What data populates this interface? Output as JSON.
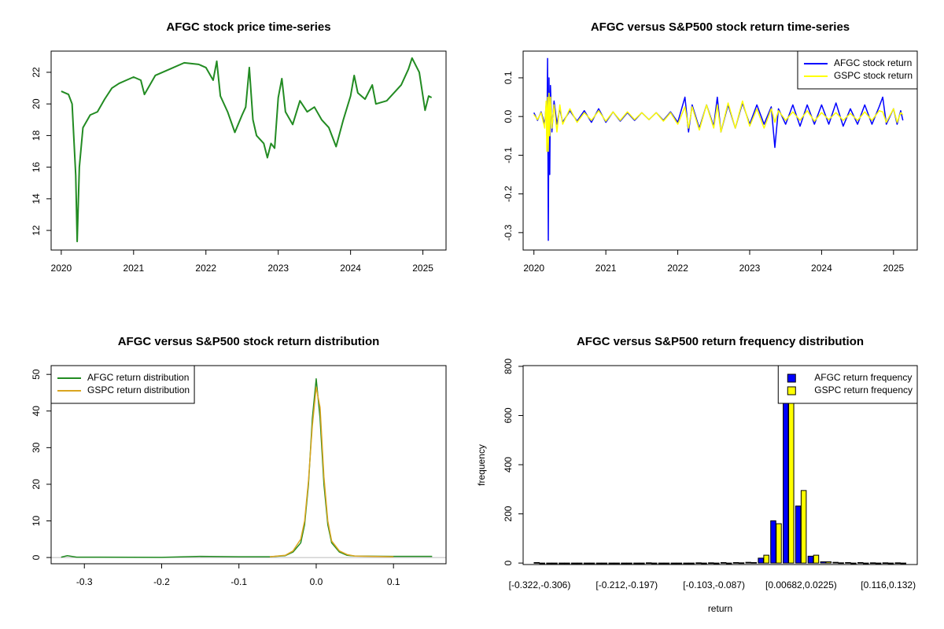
{
  "chart_data": [
    {
      "type": "line",
      "title": "AFGC stock price time-series",
      "color": "#228b22",
      "x": [
        2020.0,
        2020.1,
        2020.15,
        2020.2,
        2020.22,
        2020.25,
        2020.3,
        2020.4,
        2020.5,
        2020.6,
        2020.7,
        2020.8,
        2020.9,
        2021.0,
        2021.1,
        2021.15,
        2021.3,
        2021.5,
        2021.7,
        2021.9,
        2022.0,
        2022.1,
        2022.15,
        2022.2,
        2022.3,
        2022.4,
        2022.5,
        2022.55,
        2022.6,
        2022.65,
        2022.7,
        2022.8,
        2022.85,
        2022.9,
        2022.95,
        2023.0,
        2023.05,
        2023.1,
        2023.2,
        2023.3,
        2023.4,
        2023.5,
        2023.6,
        2023.7,
        2023.8,
        2023.9,
        2024.0,
        2024.05,
        2024.1,
        2024.2,
        2024.3,
        2024.35,
        2024.5,
        2024.7,
        2024.8,
        2024.85,
        2024.95,
        2025.0,
        2025.03,
        2025.08,
        2025.12
      ],
      "values": [
        20.8,
        20.6,
        20.0,
        15.5,
        11.3,
        16.0,
        18.5,
        19.3,
        19.5,
        20.3,
        21.0,
        21.3,
        21.5,
        21.7,
        21.5,
        20.6,
        21.8,
        22.2,
        22.6,
        22.5,
        22.3,
        21.5,
        22.7,
        20.5,
        19.5,
        18.2,
        19.3,
        19.8,
        22.3,
        19.0,
        18.0,
        17.5,
        16.6,
        17.5,
        17.2,
        20.4,
        21.6,
        19.5,
        18.7,
        20.2,
        19.5,
        19.8,
        19.0,
        18.5,
        17.3,
        19.0,
        20.5,
        21.8,
        20.7,
        20.3,
        21.2,
        20.0,
        20.2,
        21.2,
        22.2,
        22.9,
        22.0,
        20.5,
        19.6,
        20.5,
        20.4
      ],
      "xlim": [
        2019.86,
        2025.32
      ],
      "xticks": [
        2020,
        2021,
        2022,
        2023,
        2024,
        2025
      ],
      "ylim": [
        10.76,
        23.34
      ],
      "yticks": [
        12,
        14,
        16,
        18,
        20,
        22
      ]
    },
    {
      "type": "line",
      "title": "AFGC versus S&P500 stock return time-series",
      "legend": "topright",
      "x": [
        2020.0,
        2020.05,
        2020.1,
        2020.15,
        2020.17,
        2020.18,
        2020.19,
        2020.2,
        2020.21,
        2020.22,
        2020.23,
        2020.25,
        2020.28,
        2020.32,
        2020.36,
        2020.4,
        2020.5,
        2020.6,
        2020.7,
        2020.8,
        2020.9,
        2021.0,
        2021.1,
        2021.2,
        2021.3,
        2021.4,
        2021.5,
        2021.6,
        2021.7,
        2021.8,
        2021.9,
        2022.0,
        2022.1,
        2022.15,
        2022.2,
        2022.3,
        2022.4,
        2022.5,
        2022.55,
        2022.6,
        2022.7,
        2022.8,
        2022.9,
        2023.0,
        2023.1,
        2023.2,
        2023.3,
        2023.35,
        2023.4,
        2023.5,
        2023.6,
        2023.7,
        2023.8,
        2023.9,
        2024.0,
        2024.1,
        2024.2,
        2024.3,
        2024.4,
        2024.5,
        2024.6,
        2024.7,
        2024.8,
        2024.85,
        2024.9,
        2025.0,
        2025.05,
        2025.1,
        2025.13
      ],
      "series": [
        {
          "name": "AFGC stock return",
          "color": "#0000ff",
          "values": [
            0.01,
            -0.01,
            0.012,
            -0.02,
            0.03,
            -0.05,
            0.15,
            -0.32,
            0.1,
            -0.15,
            0.08,
            -0.04,
            0.04,
            -0.02,
            0.02,
            -0.015,
            0.015,
            -0.012,
            0.015,
            -0.015,
            0.02,
            -0.015,
            0.012,
            -0.012,
            0.01,
            -0.01,
            0.01,
            -0.008,
            0.01,
            -0.01,
            0.012,
            -0.015,
            0.05,
            -0.04,
            0.03,
            -0.03,
            0.03,
            -0.025,
            0.05,
            -0.04,
            0.03,
            -0.03,
            0.035,
            -0.02,
            0.03,
            -0.02,
            0.025,
            -0.08,
            0.02,
            -0.02,
            0.03,
            -0.025,
            0.03,
            -0.02,
            0.03,
            -0.02,
            0.035,
            -0.025,
            0.02,
            -0.02,
            0.03,
            -0.02,
            0.025,
            0.05,
            -0.02,
            0.02,
            -0.02,
            0.015,
            -0.01
          ]
        },
        {
          "name": "GSPC stock return",
          "color": "#ffff00",
          "values": [
            0.005,
            -0.008,
            0.01,
            -0.03,
            0.04,
            -0.09,
            0.05,
            -0.09,
            0.06,
            -0.05,
            0.05,
            -0.03,
            0.03,
            -0.04,
            0.03,
            -0.02,
            0.02,
            -0.015,
            0.01,
            -0.01,
            0.015,
            -0.012,
            0.012,
            -0.01,
            0.012,
            -0.008,
            0.01,
            -0.008,
            0.01,
            -0.012,
            0.01,
            -0.02,
            0.025,
            -0.03,
            0.025,
            -0.035,
            0.03,
            -0.03,
            0.03,
            -0.04,
            0.035,
            -0.03,
            0.04,
            -0.025,
            0.02,
            -0.03,
            0.02,
            -0.015,
            0.015,
            -0.01,
            0.012,
            -0.01,
            0.015,
            -0.012,
            0.01,
            -0.008,
            0.01,
            -0.01,
            0.008,
            -0.01,
            0.012,
            -0.01,
            0.015,
            0.012,
            -0.015,
            0.02,
            -0.015,
            0.01,
            0.005
          ]
        }
      ],
      "xlim": [
        2019.85,
        2025.33
      ],
      "xticks": [
        2020,
        2021,
        2022,
        2023,
        2024,
        2025
      ],
      "ylim": [
        -0.345,
        0.169
      ],
      "yticks": [
        -0.3,
        -0.2,
        -0.1,
        {
          "value": 0,
          "label": "0.0"
        },
        0.1
      ]
    },
    {
      "type": "line",
      "title": "AFGC versus S&P500 stock return distribution",
      "legend": "topleft",
      "x": [
        -0.33,
        -0.322,
        -0.31,
        -0.2,
        -0.15,
        -0.1,
        -0.06,
        -0.04,
        -0.03,
        -0.02,
        -0.015,
        -0.01,
        -0.005,
        0,
        0.005,
        0.01,
        0.015,
        0.02,
        0.03,
        0.04,
        0.05,
        0.1,
        0.15
      ],
      "series": [
        {
          "name": "AFGC return distribution",
          "color": "#228b22",
          "values": [
            0.1,
            0.5,
            0.1,
            0.05,
            0.3,
            0.2,
            0.2,
            0.5,
            1.5,
            4,
            9,
            20,
            38,
            48.8,
            38,
            20,
            9,
            4,
            1.5,
            0.6,
            0.4,
            0.3,
            0.3
          ]
        },
        {
          "name": "GSPC return distribution",
          "color": "#daa520",
          "values": [
            null,
            null,
            null,
            null,
            null,
            null,
            0.2,
            0.6,
            1.8,
            5,
            10,
            21,
            36,
            46.5,
            41,
            22,
            10,
            4.5,
            1.8,
            0.8,
            0.4,
            0.2,
            null
          ]
        }
      ],
      "xlim": [
        -0.343,
        0.168
      ],
      "xticks": [
        -0.3,
        -0.2,
        -0.1,
        {
          "value": 0,
          "label": "0.0"
        },
        0.1
      ],
      "ylim": [
        -1.7,
        52.4
      ],
      "yticks": [
        0,
        10,
        20,
        30,
        40,
        50
      ]
    },
    {
      "type": "bar",
      "title": "AFGC versus S&P500 return frequency distribution",
      "legend": "topright",
      "x_label": "return",
      "y_label": "frequency",
      "categories": [
        "[-0.322,-0.306)",
        null,
        null,
        null,
        null,
        null,
        null,
        "[-0.212,-0.197)",
        null,
        null,
        null,
        null,
        null,
        null,
        "[-0.103,-0.087)",
        null,
        null,
        null,
        null,
        null,
        null,
        "[0.00682,0.0225)",
        null,
        null,
        null,
        null,
        null,
        null,
        "[0.116,0.132)",
        null
      ],
      "series": [
        {
          "name": "AFGC return frequency",
          "color": "#0000ff",
          "values": [
            2,
            0,
            0,
            0,
            0,
            0,
            0,
            0,
            0,
            1,
            0,
            0,
            0,
            1,
            1,
            2,
            2,
            3,
            20,
            172,
            660,
            232,
            28,
            5,
            3,
            2,
            2,
            1,
            1,
            1
          ]
        },
        {
          "name": "GSPC return frequency",
          "color": "#ffff00",
          "values": [
            0,
            0,
            0,
            0,
            0,
            0,
            0,
            0,
            0,
            0,
            0,
            0,
            0,
            0,
            0,
            0,
            1,
            2,
            32,
            160,
            660,
            295,
            32,
            5,
            1,
            0,
            0,
            0,
            0,
            0
          ]
        }
      ],
      "ylim": [
        -6,
        803
      ],
      "yticks": [
        0,
        200,
        400,
        600,
        800
      ]
    }
  ]
}
